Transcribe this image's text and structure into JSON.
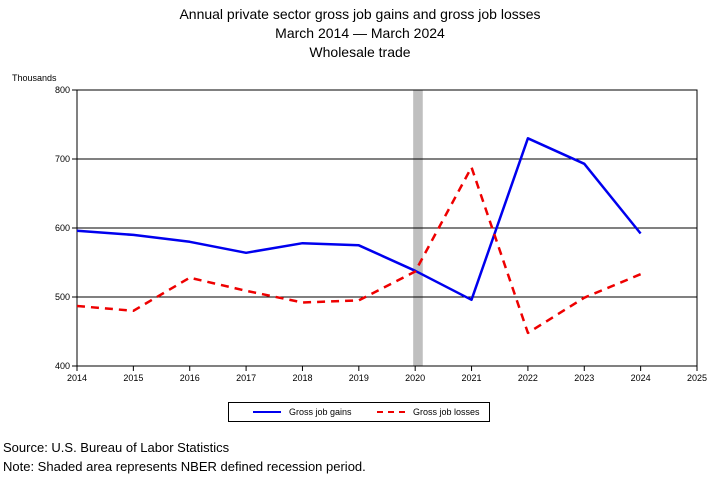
{
  "title": {
    "line1": "Annual private sector gross job gains and gross job losses",
    "line2": "March 2014 — March 2024",
    "line3": "Wholesale trade"
  },
  "unit_label": "Thousands",
  "legend": {
    "gains": "Gross job gains",
    "losses": "Gross job losses"
  },
  "footer": {
    "source": "Source: U.S. Bureau of Labor Statistics",
    "note": "Note: Shaded area represents NBER defined recession period."
  },
  "colors": {
    "gains": "#0000ee",
    "losses": "#ee0000",
    "recession": "#bfbfbf"
  },
  "chart_data": {
    "type": "line",
    "x": [
      2014,
      2015,
      2016,
      2017,
      2018,
      2019,
      2020,
      2021,
      2022,
      2023,
      2024
    ],
    "series": [
      {
        "name": "Gross job gains",
        "values": [
          596,
          590,
          580,
          564,
          578,
          575,
          538,
          496,
          730,
          693,
          592
        ]
      },
      {
        "name": "Gross job losses",
        "values": [
          487,
          480,
          528,
          509,
          492,
          495,
          537,
          688,
          448,
          499,
          533
        ]
      }
    ],
    "xlim": [
      2014,
      2025
    ],
    "ylim": [
      400,
      800
    ],
    "x_ticks": [
      "2014",
      "2015",
      "2016",
      "2017",
      "2018",
      "2019",
      "2020",
      "2021",
      "2022",
      "2023",
      "2024",
      "2025"
    ],
    "y_ticks": [
      "400",
      "500",
      "600",
      "700",
      "800"
    ],
    "recession": [
      2020,
      2020.17
    ],
    "grid": "horizontal",
    "legend_position": "bottom"
  }
}
